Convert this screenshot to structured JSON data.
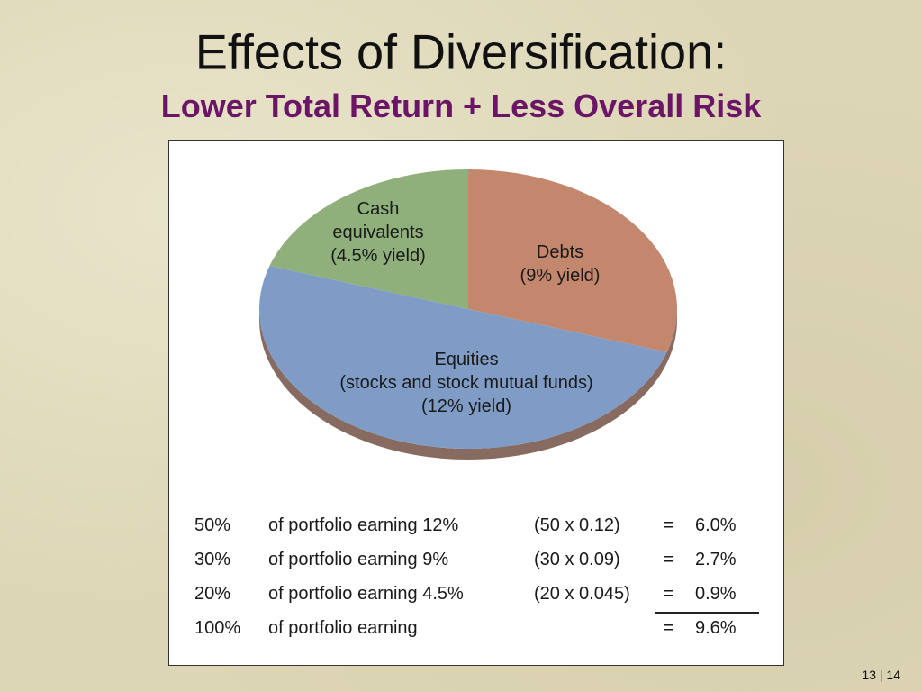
{
  "slide": {
    "title": "Effects of Diversification:",
    "subtitle": "Lower Total Return + Less Overall Risk",
    "page_current": "13",
    "page_separator": "|",
    "page_total": "14"
  },
  "colors": {
    "equities": "#7f9cc7",
    "debts": "#c2876d",
    "cash": "#8fb07a",
    "equities_side": "#876a60",
    "subtitle": "#6a1566"
  },
  "chart_data": {
    "type": "pie",
    "title": "",
    "slices": [
      {
        "key": "cash",
        "label_lines": [
          "Cash",
          "equivalents",
          "(4.5% yield)"
        ],
        "value": 20
      },
      {
        "key": "debts",
        "label_lines": [
          "Debts",
          "(9% yield)"
        ],
        "value": 30
      },
      {
        "key": "equities",
        "label_lines": [
          "Equities",
          "(stocks and stock mutual funds)",
          "(12% yield)"
        ],
        "value": 50
      }
    ],
    "three_d": true
  },
  "calculation": {
    "rows": [
      {
        "pct": "50%",
        "desc": "of portfolio earning 12%",
        "formula": "(50 x 0.12)",
        "eq": "=",
        "result": "6.0%"
      },
      {
        "pct": "30%",
        "desc": "of portfolio earning 9%",
        "formula": "(30 x 0.09)",
        "eq": "=",
        "result": "2.7%"
      },
      {
        "pct": "20%",
        "desc": "of portfolio earning 4.5%",
        "formula": "(20 x 0.045)",
        "eq": "=",
        "result": "0.9%"
      },
      {
        "pct": "100%",
        "desc": "of portfolio earning",
        "formula": "",
        "eq": "=",
        "result": "9.6%"
      }
    ]
  }
}
